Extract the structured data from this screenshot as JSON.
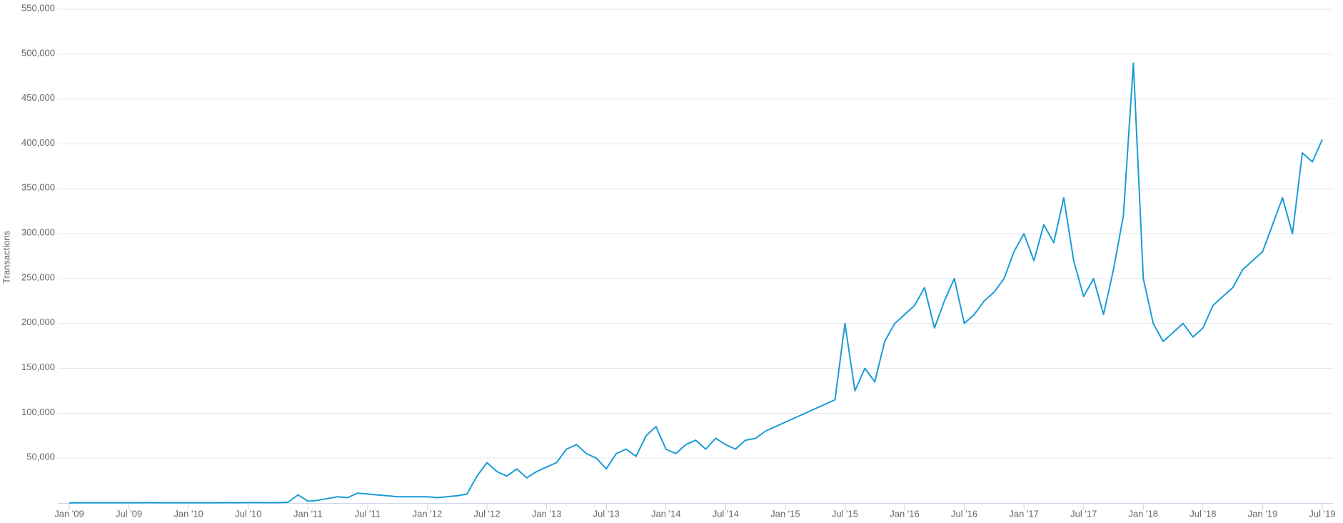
{
  "chart_data": {
    "type": "line",
    "y_label": "Transactions",
    "color": "#1a9cd6",
    "grid": true,
    "xlim": [
      "2009-01",
      "2019-07"
    ],
    "xticks": [
      {
        "value": "2009-01",
        "label": "Jan '09"
      },
      {
        "value": "2009-07",
        "label": "Jul '09"
      },
      {
        "value": "2010-01",
        "label": "Jan '10"
      },
      {
        "value": "2010-07",
        "label": "Jul '10"
      },
      {
        "value": "2011-01",
        "label": "Jan '11"
      },
      {
        "value": "2011-07",
        "label": "Jul '11"
      },
      {
        "value": "2012-01",
        "label": "Jan '12"
      },
      {
        "value": "2012-07",
        "label": "Jul '12"
      },
      {
        "value": "2013-01",
        "label": "Jan '13"
      },
      {
        "value": "2013-07",
        "label": "Jul '13"
      },
      {
        "value": "2014-01",
        "label": "Jan '14"
      },
      {
        "value": "2014-07",
        "label": "Jul '14"
      },
      {
        "value": "2015-01",
        "label": "Jan '15"
      },
      {
        "value": "2015-07",
        "label": "Jul '15"
      },
      {
        "value": "2016-01",
        "label": "Jan '16"
      },
      {
        "value": "2016-07",
        "label": "Jul '16"
      },
      {
        "value": "2017-01",
        "label": "Jan '17"
      },
      {
        "value": "2017-07",
        "label": "Jul '17"
      },
      {
        "value": "2018-01",
        "label": "Jan '18"
      },
      {
        "value": "2018-07",
        "label": "Jul '18"
      },
      {
        "value": "2019-01",
        "label": "Jan '19"
      },
      {
        "value": "2019-07",
        "label": "Jul '19"
      }
    ],
    "ylim": [
      0,
      550000
    ],
    "yticks": [
      {
        "value": 50000,
        "label": "50,000"
      },
      {
        "value": 100000,
        "label": "100,000"
      },
      {
        "value": 150000,
        "label": "150,000"
      },
      {
        "value": 200000,
        "label": "200,000"
      },
      {
        "value": 250000,
        "label": "250,000"
      },
      {
        "value": 300000,
        "label": "300,000"
      },
      {
        "value": 350000,
        "label": "350,000"
      },
      {
        "value": 400000,
        "label": "400,000"
      },
      {
        "value": 450000,
        "label": "450,000"
      },
      {
        "value": 500000,
        "label": "500,000"
      },
      {
        "value": 550000,
        "label": "550,000"
      }
    ],
    "x": [
      "2009-01",
      "2009-02",
      "2009-03",
      "2009-04",
      "2009-05",
      "2009-06",
      "2009-07",
      "2009-08",
      "2009-09",
      "2009-10",
      "2009-11",
      "2009-12",
      "2010-01",
      "2010-02",
      "2010-03",
      "2010-04",
      "2010-05",
      "2010-06",
      "2010-07",
      "2010-08",
      "2010-09",
      "2010-10",
      "2010-11",
      "2010-12",
      "2011-01",
      "2011-02",
      "2011-03",
      "2011-04",
      "2011-05",
      "2011-06",
      "2011-07",
      "2011-08",
      "2011-09",
      "2011-10",
      "2011-11",
      "2011-12",
      "2012-01",
      "2012-02",
      "2012-03",
      "2012-04",
      "2012-05",
      "2012-06",
      "2012-07",
      "2012-08",
      "2012-09",
      "2012-10",
      "2012-11",
      "2012-12",
      "2013-01",
      "2013-02",
      "2013-03",
      "2013-04",
      "2013-05",
      "2013-06",
      "2013-07",
      "2013-08",
      "2013-09",
      "2013-10",
      "2013-11",
      "2013-12",
      "2014-01",
      "2014-02",
      "2014-03",
      "2014-04",
      "2014-05",
      "2014-06",
      "2014-07",
      "2014-08",
      "2014-09",
      "2014-10",
      "2014-11",
      "2014-12",
      "2015-01",
      "2015-02",
      "2015-03",
      "2015-04",
      "2015-05",
      "2015-06",
      "2015-07",
      "2015-08",
      "2015-09",
      "2015-10",
      "2015-11",
      "2015-12",
      "2016-01",
      "2016-02",
      "2016-03",
      "2016-04",
      "2016-05",
      "2016-06",
      "2016-07",
      "2016-08",
      "2016-09",
      "2016-10",
      "2016-11",
      "2016-12",
      "2017-01",
      "2017-02",
      "2017-03",
      "2017-04",
      "2017-05",
      "2017-06",
      "2017-07",
      "2017-08",
      "2017-09",
      "2017-10",
      "2017-11",
      "2017-12",
      "2018-01",
      "2018-02",
      "2018-03",
      "2018-04",
      "2018-05",
      "2018-06",
      "2018-07",
      "2018-08",
      "2018-09",
      "2018-10",
      "2018-11",
      "2018-12",
      "2019-01",
      "2019-02",
      "2019-03",
      "2019-04",
      "2019-05",
      "2019-06",
      "2019-07"
    ],
    "values": [
      100,
      300,
      300,
      300,
      300,
      300,
      300,
      300,
      400,
      300,
      300,
      300,
      300,
      300,
      300,
      300,
      400,
      300,
      500,
      500,
      400,
      400,
      800,
      9000,
      2000,
      3000,
      5000,
      7000,
      6000,
      11000,
      10000,
      9000,
      8000,
      7000,
      7000,
      7000,
      7000,
      6000,
      7000,
      8000,
      10000,
      30000,
      45000,
      35000,
      30000,
      38000,
      28000,
      35000,
      40000,
      45000,
      60000,
      65000,
      55000,
      50000,
      38000,
      55000,
      60000,
      52000,
      75000,
      85000,
      60000,
      55000,
      65000,
      70000,
      60000,
      72000,
      65000,
      60000,
      70000,
      72000,
      80000,
      85000,
      90000,
      95000,
      100000,
      105000,
      110000,
      115000,
      200000,
      125000,
      150000,
      135000,
      180000,
      200000,
      210000,
      220000,
      240000,
      195000,
      225000,
      250000,
      200000,
      210000,
      225000,
      235000,
      250000,
      280000,
      300000,
      270000,
      310000,
      290000,
      340000,
      270000,
      230000,
      250000,
      210000,
      260000,
      320000,
      490000,
      250000,
      200000,
      180000,
      190000,
      200000,
      185000,
      195000,
      220000,
      230000,
      240000,
      260000,
      270000,
      280000,
      310000,
      340000,
      300000,
      390000,
      380000,
      405000
    ]
  }
}
